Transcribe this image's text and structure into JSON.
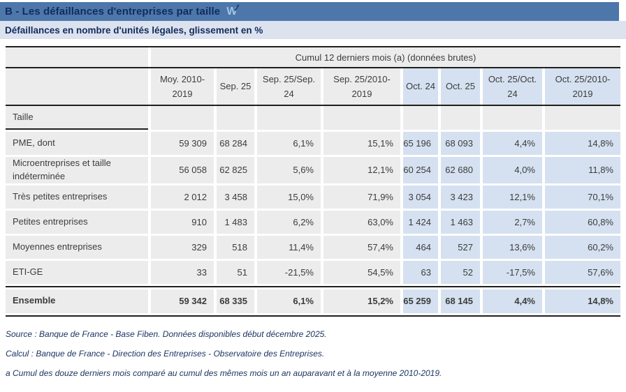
{
  "title_bar": {
    "title": "B - Les défaillances d'entreprises par taille",
    "logo_text": "W"
  },
  "subtitle": "Défaillances en nombre d'unités légales, glissement en %",
  "table": {
    "span_header": "Cumul 12 derniers mois (a) (données brutes)",
    "columns": [
      "Moy. 2010-2019",
      "Sep. 25",
      "Sep. 25/Sep. 24",
      "Sep. 25/2010-2019",
      "Oct. 24",
      "Oct. 25",
      "Oct. 25/Oct. 24",
      "Oct. 25/2010-2019"
    ],
    "highlighted_column_indexes": [
      4,
      5,
      6,
      7
    ],
    "section_label": "Taille",
    "rows": [
      {
        "label": "PME, dont",
        "values": [
          "59 309",
          "68 284",
          "6,1%",
          "15,1%",
          "65 196",
          "68 093",
          "4,4%",
          "14,8%"
        ],
        "total": false
      },
      {
        "label": "Microentreprises et taille indéterminée",
        "values": [
          "56 058",
          "62 825",
          "5,6%",
          "12,1%",
          "60 254",
          "62 680",
          "4,0%",
          "11,8%"
        ],
        "total": false
      },
      {
        "label": "Très petites entreprises",
        "values": [
          "2 012",
          "3 458",
          "15,0%",
          "71,9%",
          "3 054",
          "3 423",
          "12,1%",
          "70,1%"
        ],
        "total": false
      },
      {
        "label": "Petites entreprises",
        "values": [
          "910",
          "1 483",
          "6,2%",
          "63,0%",
          "1 424",
          "1 463",
          "2,7%",
          "60,8%"
        ],
        "total": false
      },
      {
        "label": "Moyennes entreprises",
        "values": [
          "329",
          "518",
          "11,4%",
          "57,4%",
          "464",
          "527",
          "13,6%",
          "60,2%"
        ],
        "total": false
      },
      {
        "label": "ETI-GE",
        "values": [
          "33",
          "51",
          "-21,5%",
          "54,5%",
          "63",
          "52",
          "-17,5%",
          "57,6%"
        ],
        "total": false
      },
      {
        "label": "Ensemble",
        "values": [
          "59 342",
          "68 335",
          "6,1%",
          "15,2%",
          "65 259",
          "68 145",
          "4,4%",
          "14,8%"
        ],
        "total": true
      }
    ]
  },
  "notes": [
    "Source : Banque de France - Base Fiben. Données disponibles début décembre 2025.",
    "Calcul : Banque de France - Direction des Entreprises - Observatoire des Entreprises.",
    "a Cumul des douze derniers mois comparé au cumul des mêmes mois un an auparavant et à la moyenne 2010-2019."
  ],
  "colors": {
    "title_bar_bg": "#4d77ab",
    "title_text": "#122b5c",
    "subtitle_bg": "#dce3ef",
    "cell_gray_bg": "#ececec",
    "cell_highlight_blue_bg": "#d5e1f0",
    "cell_text": "#3c3c3c",
    "dark_border": "#1f1f1f",
    "notes_text": "#1c3461",
    "logo_blue": "#a3c4e6"
  }
}
